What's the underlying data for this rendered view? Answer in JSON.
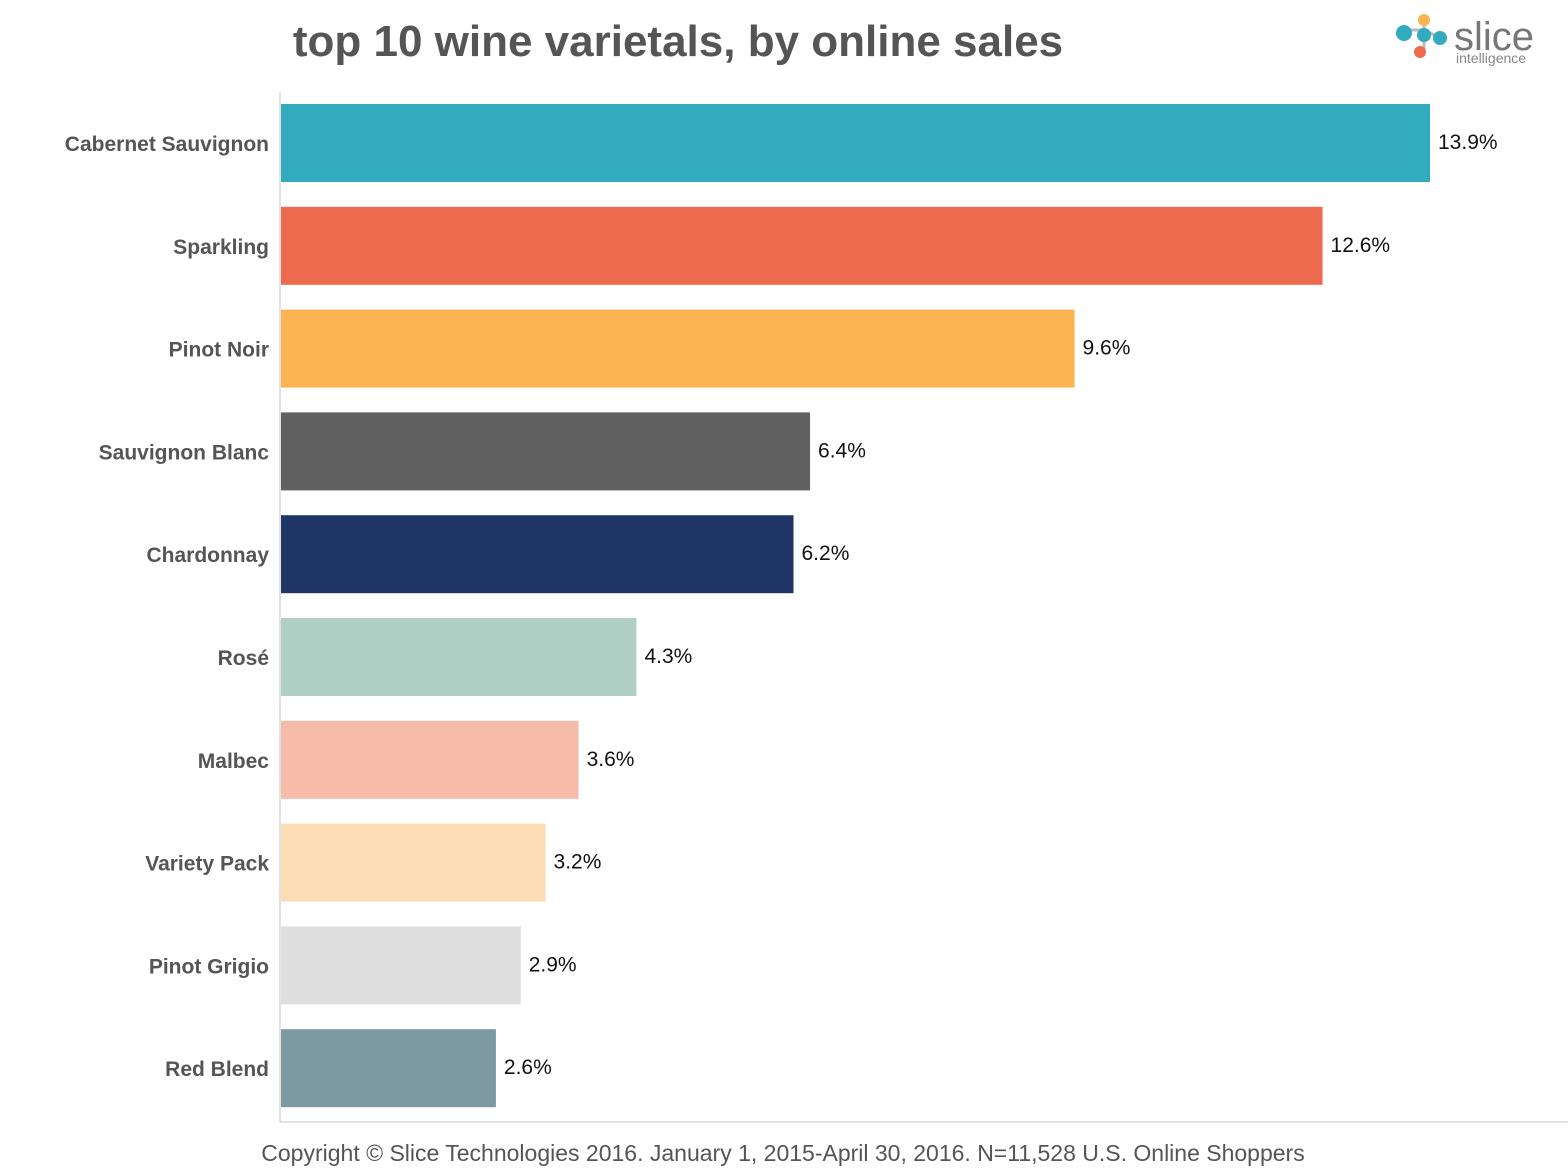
{
  "chart_data": {
    "type": "bar",
    "orientation": "horizontal",
    "title": "top 10 wine varietals, by online sales",
    "categories": [
      "Cabernet Sauvignon",
      "Sparkling",
      "Pinot Noir",
      "Sauvignon Blanc",
      "Chardonnay",
      "Rosé",
      "Malbec",
      "Variety Pack",
      "Pinot Grigio",
      "Red Blend"
    ],
    "values": [
      13.9,
      12.6,
      9.6,
      6.4,
      6.2,
      4.3,
      3.6,
      3.2,
      2.9,
      2.6
    ],
    "value_labels": [
      "13.9%",
      "12.6%",
      "9.6%",
      "6.4%",
      "6.2%",
      "4.3%",
      "3.6%",
      "3.2%",
      "2.9%",
      "2.6%"
    ],
    "colors": [
      "#33abbe",
      "#ed6a4f",
      "#fbb451",
      "#606060",
      "#1f3566",
      "#b0d0c5",
      "#f7bbaa",
      "#fcdcb4",
      "#dedede",
      "#7d9aa3"
    ],
    "xlabel": "",
    "ylabel": "",
    "xlim": [
      0,
      15
    ],
    "grid": false,
    "legend": "none"
  },
  "logo": {
    "word": "slice",
    "sub": "intelligence",
    "colors": [
      "#33abbe",
      "#ed6a4f",
      "#fbb451"
    ]
  },
  "footer": "Copyright © Slice Technologies 2016. January 1, 2015-April 30, 2016. N=11,528 U.S. Online Shoppers"
}
